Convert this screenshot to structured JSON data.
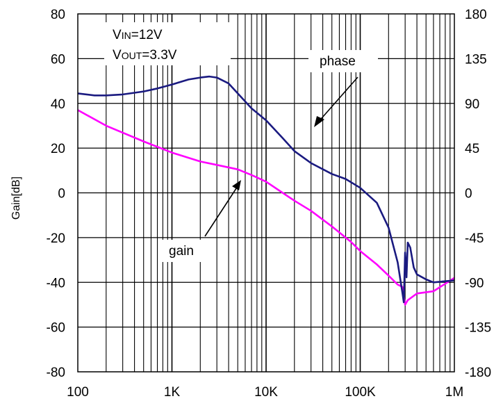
{
  "chart_data": {
    "type": "line",
    "xlabel": "",
    "ylabel": "Gain[dB]",
    "x_scale": "log",
    "xlim": [
      100,
      1000000
    ],
    "ylim": [
      -80,
      80
    ],
    "y2lim": [
      -180,
      180
    ],
    "grid": true,
    "x_tick_labels": [
      "100",
      "1K",
      "10K",
      "100K",
      "1M"
    ],
    "y_tick_labels": [
      "80",
      "60",
      "40",
      "20",
      "0",
      "-20",
      "-40",
      "-60",
      "-80"
    ],
    "y2_tick_labels": [
      "180",
      "135",
      "90",
      "45",
      "0",
      "-45",
      "-90",
      "-135",
      "-180"
    ],
    "conditions": {
      "vin": {
        "sym": "V",
        "sub": "IN",
        "val": "=12V"
      },
      "vout": {
        "sym": "V",
        "sub": "OUT",
        "val": "=3.3V"
      }
    },
    "annotations": {
      "phase": "phase",
      "gain": "gain"
    },
    "colors": {
      "gain": "#ff00ff",
      "phase": "#1a1a80"
    },
    "series": [
      {
        "key": "gain",
        "axis": "left",
        "x": [
          100,
          200,
          500,
          1000,
          2000,
          3000,
          5000,
          7000,
          10000,
          15000,
          20000,
          30000,
          50000,
          80000,
          100000,
          150000,
          200000,
          250000,
          280000,
          300000,
          320000,
          400000,
          600000,
          1000000
        ],
        "values": [
          37,
          30,
          23,
          18,
          14,
          12.5,
          10.5,
          8,
          5,
          0,
          -3.5,
          -8,
          -15,
          -22,
          -26,
          -32,
          -37,
          -41,
          -42,
          -50,
          -48,
          -45,
          -44,
          -38
        ]
      },
      {
        "key": "phase",
        "axis": "right",
        "x": [
          100,
          150,
          200,
          300,
          500,
          700,
          1000,
          1500,
          2000,
          2500,
          3000,
          4000,
          5000,
          7000,
          10000,
          15000,
          20000,
          30000,
          50000,
          70000,
          100000,
          150000,
          200000,
          250000,
          280000,
          290000,
          300000,
          310000,
          320000,
          340000,
          370000,
          400000,
          500000,
          600000,
          1000000
        ],
        "values": [
          100,
          98,
          98,
          99,
          102,
          105,
          109,
          114,
          116,
          117,
          116,
          110,
          100,
          85,
          73,
          55,
          42,
          30,
          19,
          14,
          5,
          -10,
          -35,
          -70,
          -100,
          -110,
          -60,
          -85,
          -50,
          -55,
          -75,
          -82,
          -87,
          -90,
          -88
        ]
      }
    ]
  }
}
